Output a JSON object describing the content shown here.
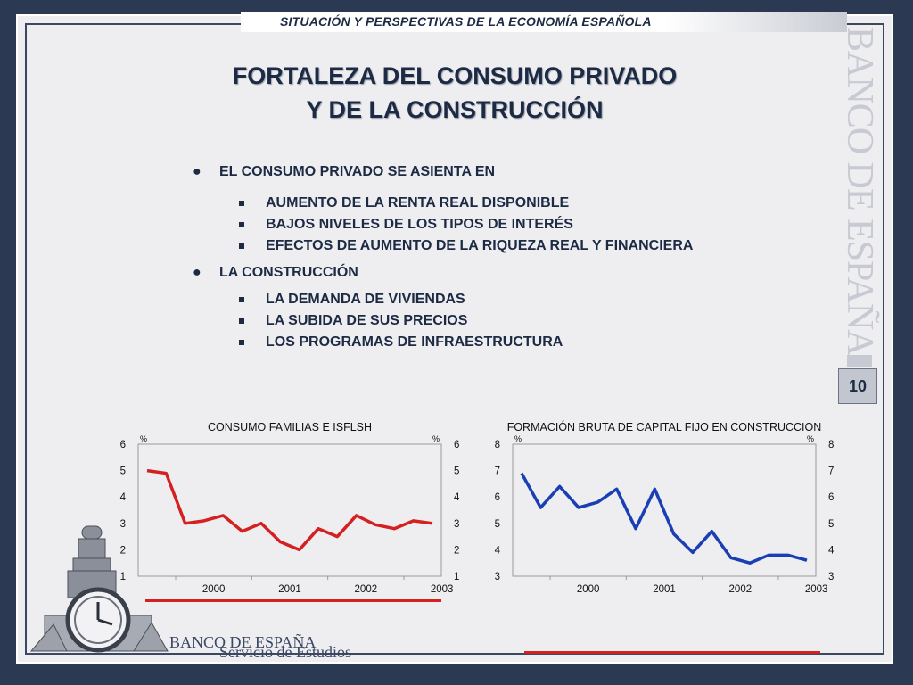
{
  "header": {
    "band_text": "SITUACIÓN Y PERSPECTIVAS DE LA ECONOMÍA ESPAÑOLA"
  },
  "title": {
    "line1": "FORTALEZA DEL CONSUMO PRIVADO",
    "line2": "Y DE LA CONSTRUCCIÓN"
  },
  "brand": {
    "vertical": "BANCO DE ESPAÑA",
    "footer_name": "BANCO DE ESPAÑA",
    "footer_dept": "Servicio de Estudios"
  },
  "page_number": "10",
  "bullets": [
    {
      "label": "EL CONSUMO PRIVADO SE ASIENTA EN",
      "items": [
        "AUMENTO DE LA RENTA REAL DISPONIBLE",
        "BAJOS NIVELES DE LOS TIPOS DE INTERÉS",
        "EFECTOS DE AUMENTO DE LA RIQUEZA REAL Y FINANCIERA"
      ]
    },
    {
      "label": "LA CONSTRUCCIÓN",
      "items": [
        "LA DEMANDA DE VIVIENDAS",
        "LA SUBIDA DE SUS PRECIOS",
        "LOS PROGRAMAS DE INFRAESTRUCTURA"
      ]
    }
  ],
  "colors": {
    "accent_red": "#d42020",
    "series_blue": "#1a3fb5",
    "navy": "#1c2a44"
  },
  "chart_data": [
    {
      "type": "line",
      "title": "CONSUMO FAMILIAS E ISFLSH",
      "unit_left": "%",
      "unit_right": "%",
      "ylim": [
        1,
        6
      ],
      "yticks": [
        "1",
        "2",
        "3",
        "4",
        "5",
        "6"
      ],
      "x_tick_labels": [
        "2000",
        "2001",
        "2002",
        "2003"
      ],
      "x": [
        "1999-Q3",
        "1999-Q4",
        "2000-Q1",
        "2000-Q2",
        "2000-Q3",
        "2000-Q4",
        "2001-Q1",
        "2001-Q2",
        "2001-Q3",
        "2001-Q4",
        "2002-Q1",
        "2002-Q2",
        "2002-Q3",
        "2002-Q4",
        "2003-Q1",
        "2003-Q2"
      ],
      "series": [
        {
          "color": "#d42020",
          "values": [
            5.0,
            4.9,
            3.0,
            3.1,
            3.3,
            2.7,
            3.0,
            2.3,
            2.0,
            2.8,
            2.5,
            3.3,
            2.95,
            2.8,
            3.1,
            3.0
          ]
        }
      ],
      "grid": false
    },
    {
      "type": "line",
      "title": "FORMACIÓN BRUTA DE CAPITAL FIJO EN CONSTRUCCION",
      "unit_left": "%",
      "unit_right": "%",
      "ylim": [
        3,
        8
      ],
      "yticks": [
        "3",
        "4",
        "5",
        "6",
        "7",
        "8"
      ],
      "x_tick_labels": [
        "2000",
        "2001",
        "2002",
        "2003"
      ],
      "x": [
        "1999-Q3",
        "1999-Q4",
        "2000-Q1",
        "2000-Q2",
        "2000-Q3",
        "2000-Q4",
        "2001-Q1",
        "2001-Q2",
        "2001-Q3",
        "2001-Q4",
        "2002-Q1",
        "2002-Q2",
        "2002-Q3",
        "2002-Q4",
        "2003-Q1",
        "2003-Q2"
      ],
      "series": [
        {
          "color": "#1a3fb5",
          "values": [
            6.9,
            5.6,
            6.4,
            5.6,
            5.8,
            6.3,
            4.8,
            6.3,
            4.6,
            3.9,
            4.7,
            3.7,
            3.5,
            3.8,
            3.8,
            3.6
          ]
        }
      ],
      "grid": false
    }
  ]
}
